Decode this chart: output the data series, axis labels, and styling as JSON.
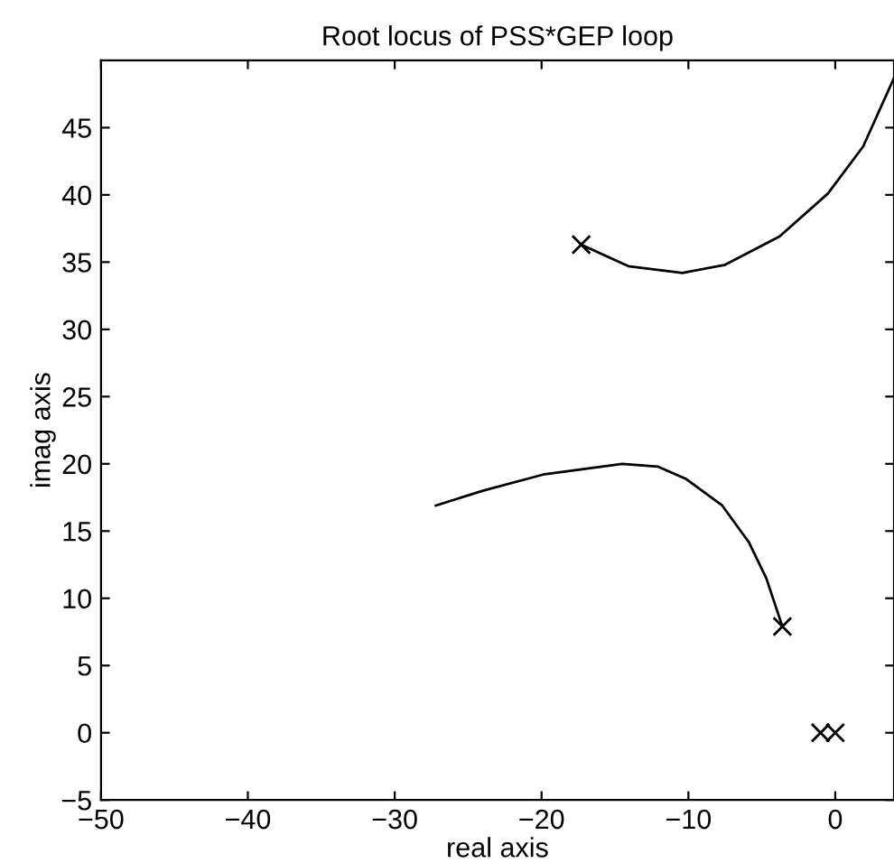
{
  "chart_data": {
    "type": "line",
    "title": "Root locus of PSS*GEP loop",
    "xlabel": "real axis",
    "ylabel": "imag axis",
    "xlim": [
      -50,
      4
    ],
    "ylim": [
      -5,
      50
    ],
    "xticks": [
      -50,
      -40,
      -30,
      -20,
      -10,
      0
    ],
    "yticks": [
      -5,
      0,
      5,
      10,
      15,
      20,
      25,
      30,
      35,
      40,
      45
    ],
    "grid": false,
    "series": [
      {
        "color": "#000000",
        "marker": "none",
        "x": [
          -17.3,
          -14.1,
          -10.4,
          -7.5,
          -3.8,
          -0.5,
          1.9,
          4.0
        ],
        "values": [
          36.3,
          34.7,
          34.2,
          34.8,
          36.9,
          40.1,
          43.6,
          48.7
        ]
      },
      {
        "color": "#000000",
        "marker": "none",
        "x": [
          -27.2,
          -24.0,
          -19.9,
          -14.5,
          -12.1,
          -10.2,
          -7.7,
          -5.9,
          -4.7,
          -3.6
        ],
        "values": [
          16.9,
          18.0,
          19.2,
          20.0,
          19.8,
          18.9,
          16.9,
          14.2,
          11.5,
          7.9
        ]
      },
      {
        "type": "scatter",
        "color": "#000000",
        "marker": "cross",
        "x": [
          -17.3,
          -3.6,
          -1.0,
          0
        ],
        "values": [
          36.3,
          7.9,
          0,
          0
        ]
      }
    ]
  }
}
